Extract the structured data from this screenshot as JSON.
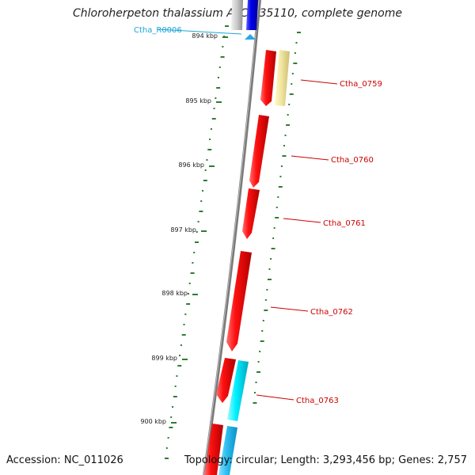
{
  "title": "Chloroherpeton thalassium ATCC 35110, complete genome",
  "footer": {
    "accession": "Accession: NC_011026",
    "summary": "Topology: circular; Length: 3,293,456 bp; Genes: 2,757"
  },
  "colors": {
    "backbone": "#808080",
    "cds_forward": "#ee0000",
    "rna": "#00d8e8",
    "pseudo": "#f0e6a0",
    "rrna": "#0000dd",
    "gc_content": "#2e7d32",
    "gene_label": "#cc0000",
    "rna_label": "#1aa6d9"
  },
  "ticks": [
    "894 kbp",
    "895 kbp",
    "896 kbp",
    "897 kbp",
    "898 kbp",
    "899 kbp",
    "900 kbp"
  ],
  "gene_labels": [
    {
      "text": "Ctha_R0006",
      "type": "rna"
    },
    {
      "text": "Ctha_0759",
      "type": "cds"
    },
    {
      "text": "Ctha_0760",
      "type": "cds"
    },
    {
      "text": "Ctha_0761",
      "type": "cds"
    },
    {
      "text": "Ctha_0762",
      "type": "cds"
    },
    {
      "text": "Ctha_0763",
      "type": "cds"
    }
  ]
}
